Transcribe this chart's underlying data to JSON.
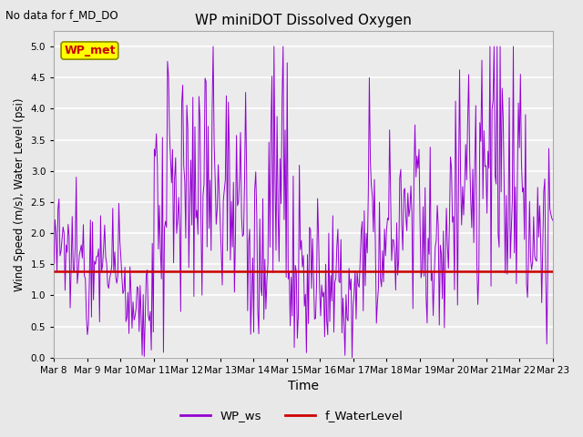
{
  "title": "WP miniDOT Dissolved Oxygen",
  "subtitle": "No data for f_MD_DO",
  "xlabel": "Time",
  "ylabel": "Wind Speed (m/s), Water Level (psi)",
  "ylim": [
    0.0,
    5.25
  ],
  "yticks": [
    0.0,
    0.5,
    1.0,
    1.5,
    2.0,
    2.5,
    3.0,
    3.5,
    4.0,
    4.5,
    5.0
  ],
  "wp_ws_color": "#9400D3",
  "f_waterlevel_color": "#CC0000",
  "f_waterlevel_value": 1.38,
  "wp_met_box_facecolor": "#FFFF00",
  "wp_met_box_edgecolor": "#8B8B00",
  "wp_met_text_color": "#CC0000",
  "background_color": "#E8E8E8",
  "plot_bg_color": "#EBEBEB",
  "grid_color": "#FFFFFF",
  "tick_labels": [
    "Mar 8",
    "Mar 9",
    "Mar 10",
    "Mar 11",
    "Mar 12",
    "Mar 13",
    "Mar 14",
    "Mar 15",
    "Mar 16",
    "Mar 17",
    "Mar 18",
    "Mar 19",
    "Mar 20",
    "Mar 21",
    "Mar 22",
    "Mar 23"
  ],
  "legend_ws_label": "WP_ws",
  "legend_wl_label": "f_WaterLevel",
  "wp_met_label": "WP_met",
  "figsize": [
    6.4,
    4.8
  ],
  "dpi": 100
}
